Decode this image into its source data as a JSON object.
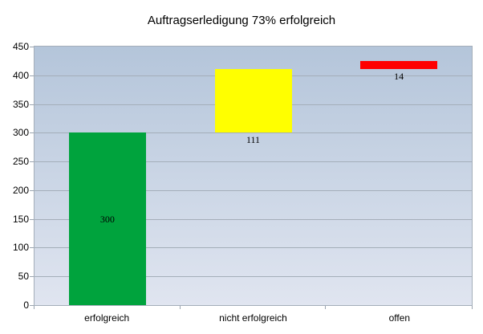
{
  "chart_data": {
    "type": "bar",
    "subtype": "waterfall",
    "title": "Auftragserledigung 73% erfolgreich",
    "categories": [
      "erfolgreich",
      "nicht erfolgreich",
      "offen"
    ],
    "points": [
      {
        "category": "erfolgreich",
        "value": 300,
        "start": 0,
        "end": 300,
        "color": "#00a33d",
        "label": "300",
        "label_position": "inside-center"
      },
      {
        "category": "nicht erfolgreich",
        "value": 111,
        "start": 300,
        "end": 411,
        "color": "#ffff00",
        "label": "111",
        "label_position": "below"
      },
      {
        "category": "offen",
        "value": 14,
        "start": 411,
        "end": 425,
        "color": "#ff0000",
        "label": "14",
        "label_position": "below"
      }
    ],
    "ylim": [
      0,
      450
    ],
    "yticks": [
      0,
      50,
      100,
      150,
      200,
      250,
      300,
      350,
      400,
      450
    ],
    "grid": true,
    "legend": "none",
    "plot_background_gradient_top": "#b4c5da",
    "plot_background_gradient_bottom": "#e0e5f0",
    "grid_color": "#a4aeb9",
    "axis_color": "#9aa4b0",
    "text_color": "#000000"
  }
}
